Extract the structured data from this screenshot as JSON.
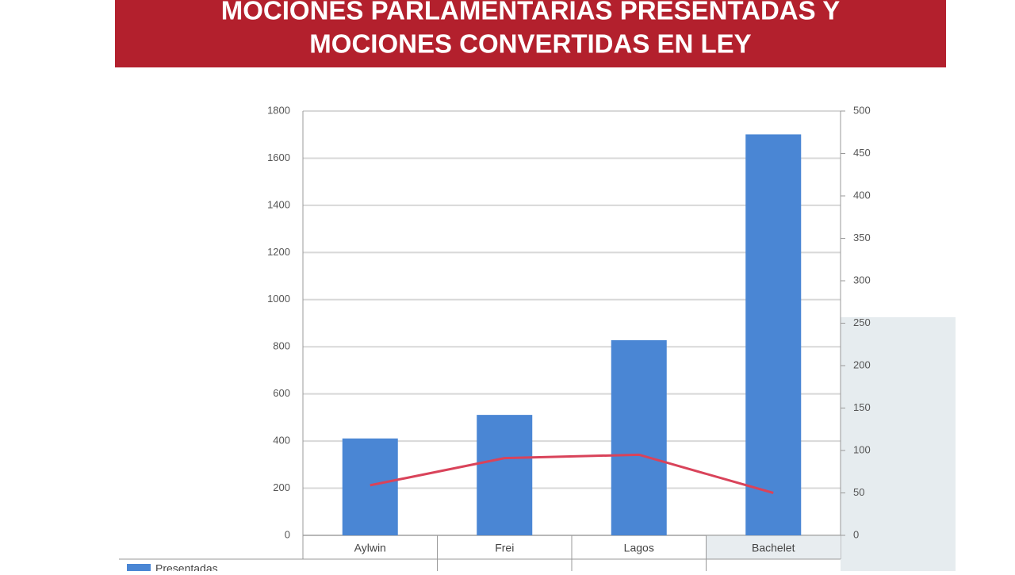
{
  "chart_data": {
    "type": "bar_line",
    "title": [
      "MOCIONES PARLAMENTARIAS PRESENTADAS Y",
      "MOCIONES CONVERTIDAS EN LEY"
    ],
    "categories": [
      "Aylwin",
      "Frei",
      "Lagos",
      "Bachelet"
    ],
    "series": [
      {
        "name": "Presentadas",
        "type": "bar",
        "color": "#4a86d4",
        "values": [
          411,
          511,
          828,
          1701
        ]
      },
      {
        "type": "line",
        "axis": "y2",
        "color": "#d9435a",
        "values": [
          59,
          91,
          95,
          50
        ]
      }
    ],
    "ylim": [
      0,
      1800
    ],
    "yticks": [
      0,
      200,
      400,
      600,
      800,
      1000,
      1200,
      1400,
      1600,
      1800
    ],
    "y2lim": [
      0,
      500
    ],
    "y2ticks": [
      0,
      50,
      100,
      150,
      200,
      250,
      300,
      350,
      400,
      450,
      500
    ],
    "grid": true
  }
}
